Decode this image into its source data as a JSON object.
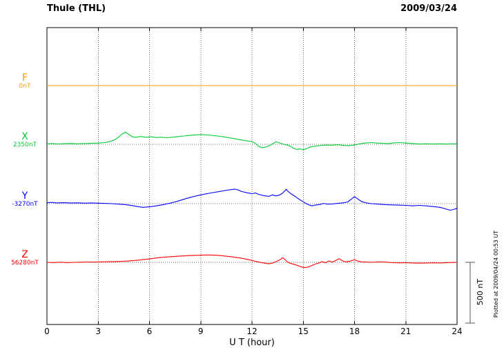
{
  "header": {
    "title": "Thule (THL)",
    "date": "2009/03/24"
  },
  "axis": {
    "xlabel": "U T (hour)"
  },
  "scale": {
    "label": "500 nT"
  },
  "footer_note": "Plotted at 2009/04/24 00:53 UT",
  "channels": [
    {
      "name": "F",
      "baseline_label": "0nT",
      "color": "#ff9900"
    },
    {
      "name": "X",
      "baseline_label": "2350nT",
      "color": "#00cc33"
    },
    {
      "name": "Y",
      "baseline_label": "-3270nT",
      "color": "#0000ff"
    },
    {
      "name": "Z",
      "baseline_label": "56280nT",
      "color": "#ff0000"
    }
  ],
  "chart_data": {
    "type": "line",
    "title": "Thule (THL) magnetogram",
    "date": "2009/03/24",
    "xlabel": "U T (hour)",
    "x_range_hours": [
      0,
      24
    ],
    "x_tick_hours": [
      0,
      3,
      6,
      9,
      12,
      15,
      18,
      21,
      24
    ],
    "grid": "dotted",
    "scale_bar": {
      "nT": 500
    },
    "series": [
      {
        "name": "F",
        "color": "#ff9900",
        "baseline_nT": 0,
        "points": [
          [
            0,
            0
          ],
          [
            24,
            0
          ]
        ]
      },
      {
        "name": "X",
        "color": "#00cc33",
        "baseline_nT": 2350,
        "points": [
          [
            0,
            4
          ],
          [
            0.3,
            6
          ],
          [
            0.6,
            3
          ],
          [
            1,
            5
          ],
          [
            1.4,
            7
          ],
          [
            1.8,
            4
          ],
          [
            2.2,
            6
          ],
          [
            2.6,
            8
          ],
          [
            3,
            10
          ],
          [
            3.4,
            14
          ],
          [
            3.7,
            22
          ],
          [
            4,
            40
          ],
          [
            4.2,
            60
          ],
          [
            4.4,
            85
          ],
          [
            4.6,
            100
          ],
          [
            4.8,
            80
          ],
          [
            5,
            62
          ],
          [
            5.2,
            58
          ],
          [
            5.5,
            64
          ],
          [
            5.8,
            58
          ],
          [
            6.1,
            62
          ],
          [
            6.4,
            55
          ],
          [
            6.7,
            58
          ],
          [
            7,
            54
          ],
          [
            7.3,
            58
          ],
          [
            7.6,
            62
          ],
          [
            8,
            68
          ],
          [
            8.3,
            72
          ],
          [
            8.6,
            76
          ],
          [
            9,
            80
          ],
          [
            9.3,
            78
          ],
          [
            9.6,
            74
          ],
          [
            10,
            68
          ],
          [
            10.3,
            62
          ],
          [
            10.6,
            55
          ],
          [
            11,
            46
          ],
          [
            11.3,
            38
          ],
          [
            11.6,
            30
          ],
          [
            12,
            22
          ],
          [
            12.2,
            8
          ],
          [
            12.4,
            -18
          ],
          [
            12.6,
            -28
          ],
          [
            12.8,
            -22
          ],
          [
            13,
            -12
          ],
          [
            13.2,
            4
          ],
          [
            13.4,
            20
          ],
          [
            13.6,
            12
          ],
          [
            13.8,
            2
          ],
          [
            14,
            -4
          ],
          [
            14.2,
            -12
          ],
          [
            14.4,
            -30
          ],
          [
            14.6,
            -42
          ],
          [
            14.8,
            -38
          ],
          [
            15,
            -44
          ],
          [
            15.2,
            -36
          ],
          [
            15.4,
            -22
          ],
          [
            15.7,
            -14
          ],
          [
            16,
            -10
          ],
          [
            16.3,
            -6
          ],
          [
            16.6,
            -8
          ],
          [
            17,
            -4
          ],
          [
            17.3,
            -8
          ],
          [
            17.6,
            -12
          ],
          [
            18,
            -6
          ],
          [
            18.3,
            4
          ],
          [
            18.6,
            10
          ],
          [
            19,
            14
          ],
          [
            19.3,
            10
          ],
          [
            19.6,
            8
          ],
          [
            20,
            6
          ],
          [
            20.3,
            12
          ],
          [
            20.6,
            14
          ],
          [
            21,
            10
          ],
          [
            21.4,
            6
          ],
          [
            21.8,
            2
          ],
          [
            22.2,
            4
          ],
          [
            22.6,
            2
          ],
          [
            23,
            4
          ],
          [
            23.4,
            2
          ],
          [
            23.8,
            4
          ],
          [
            24,
            4
          ]
        ]
      },
      {
        "name": "Y",
        "color": "#0000ff",
        "baseline_nT": -3270,
        "points": [
          [
            0,
            8
          ],
          [
            0.3,
            10
          ],
          [
            0.6,
            6
          ],
          [
            1,
            8
          ],
          [
            1.4,
            5
          ],
          [
            1.8,
            7
          ],
          [
            2.2,
            4
          ],
          [
            2.6,
            6
          ],
          [
            3,
            4
          ],
          [
            3.4,
            2
          ],
          [
            3.8,
            0
          ],
          [
            4.2,
            -4
          ],
          [
            4.6,
            -8
          ],
          [
            5,
            -16
          ],
          [
            5.3,
            -24
          ],
          [
            5.6,
            -30
          ],
          [
            6,
            -26
          ],
          [
            6.4,
            -18
          ],
          [
            6.8,
            -8
          ],
          [
            7.2,
            4
          ],
          [
            7.6,
            18
          ],
          [
            8,
            36
          ],
          [
            8.4,
            52
          ],
          [
            8.8,
            66
          ],
          [
            9.2,
            78
          ],
          [
            9.6,
            88
          ],
          [
            10,
            98
          ],
          [
            10.4,
            108
          ],
          [
            10.8,
            116
          ],
          [
            11,
            120
          ],
          [
            11.2,
            112
          ],
          [
            11.4,
            100
          ],
          [
            11.7,
            90
          ],
          [
            12,
            82
          ],
          [
            12.2,
            88
          ],
          [
            12.4,
            76
          ],
          [
            12.7,
            66
          ],
          [
            13,
            60
          ],
          [
            13.2,
            72
          ],
          [
            13.4,
            64
          ],
          [
            13.6,
            70
          ],
          [
            13.8,
            88
          ],
          [
            14,
            118
          ],
          [
            14.15,
            96
          ],
          [
            14.3,
            80
          ],
          [
            14.5,
            62
          ],
          [
            14.7,
            42
          ],
          [
            14.9,
            24
          ],
          [
            15.1,
            6
          ],
          [
            15.3,
            -8
          ],
          [
            15.5,
            -18
          ],
          [
            15.7,
            -12
          ],
          [
            16,
            -6
          ],
          [
            16.2,
            2
          ],
          [
            16.4,
            -4
          ],
          [
            16.7,
            -2
          ],
          [
            17,
            2
          ],
          [
            17.3,
            6
          ],
          [
            17.6,
            14
          ],
          [
            17.8,
            36
          ],
          [
            18,
            58
          ],
          [
            18.2,
            38
          ],
          [
            18.4,
            18
          ],
          [
            18.7,
            6
          ],
          [
            19,
            0
          ],
          [
            19.4,
            -4
          ],
          [
            19.8,
            -8
          ],
          [
            20.2,
            -10
          ],
          [
            20.6,
            -12
          ],
          [
            21,
            -14
          ],
          [
            21.4,
            -18
          ],
          [
            21.8,
            -14
          ],
          [
            22.2,
            -18
          ],
          [
            22.6,
            -24
          ],
          [
            23,
            -30
          ],
          [
            23.3,
            -42
          ],
          [
            23.6,
            -54
          ],
          [
            23.8,
            -48
          ],
          [
            24,
            -38
          ]
        ]
      },
      {
        "name": "Z",
        "color": "#ff0000",
        "baseline_nT": 56280,
        "points": [
          [
            0,
            0
          ],
          [
            0.4,
            -2
          ],
          [
            0.8,
            1
          ],
          [
            1.2,
            -2
          ],
          [
            1.6,
            0
          ],
          [
            2,
            1
          ],
          [
            2.4,
            3
          ],
          [
            2.8,
            2
          ],
          [
            3.2,
            4
          ],
          [
            3.6,
            5
          ],
          [
            4,
            6
          ],
          [
            4.4,
            8
          ],
          [
            4.8,
            12
          ],
          [
            5.2,
            16
          ],
          [
            5.6,
            22
          ],
          [
            6,
            28
          ],
          [
            6.4,
            36
          ],
          [
            6.8,
            42
          ],
          [
            7.2,
            46
          ],
          [
            7.6,
            50
          ],
          [
            8,
            53
          ],
          [
            8.4,
            56
          ],
          [
            8.8,
            58
          ],
          [
            9.2,
            60
          ],
          [
            9.6,
            60
          ],
          [
            10,
            58
          ],
          [
            10.4,
            52
          ],
          [
            10.8,
            46
          ],
          [
            11.2,
            38
          ],
          [
            11.6,
            28
          ],
          [
            12,
            16
          ],
          [
            12.2,
            8
          ],
          [
            12.4,
            2
          ],
          [
            12.6,
            -4
          ],
          [
            12.8,
            -8
          ],
          [
            13,
            -12
          ],
          [
            13.2,
            -6
          ],
          [
            13.4,
            6
          ],
          [
            13.6,
            18
          ],
          [
            13.8,
            38
          ],
          [
            13.95,
            20
          ],
          [
            14.1,
            0
          ],
          [
            14.3,
            -10
          ],
          [
            14.5,
            -18
          ],
          [
            14.7,
            -28
          ],
          [
            14.9,
            -38
          ],
          [
            15.1,
            -44
          ],
          [
            15.3,
            -38
          ],
          [
            15.5,
            -26
          ],
          [
            15.7,
            -14
          ],
          [
            15.9,
            -6
          ],
          [
            16.1,
            6
          ],
          [
            16.3,
            -4
          ],
          [
            16.5,
            12
          ],
          [
            16.7,
            2
          ],
          [
            16.9,
            16
          ],
          [
            17.1,
            30
          ],
          [
            17.3,
            12
          ],
          [
            17.5,
            4
          ],
          [
            17.7,
            8
          ],
          [
            18,
            22
          ],
          [
            18.2,
            10
          ],
          [
            18.4,
            4
          ],
          [
            18.7,
            2
          ],
          [
            19,
            0
          ],
          [
            19.4,
            4
          ],
          [
            19.8,
            2
          ],
          [
            20.2,
            -2
          ],
          [
            20.6,
            -4
          ],
          [
            21,
            -2
          ],
          [
            21.4,
            -5
          ],
          [
            21.8,
            -7
          ],
          [
            22.2,
            -5
          ],
          [
            22.6,
            -4
          ],
          [
            23,
            -5
          ],
          [
            23.4,
            -2
          ],
          [
            23.8,
            -1
          ],
          [
            24,
            0
          ]
        ]
      }
    ]
  }
}
